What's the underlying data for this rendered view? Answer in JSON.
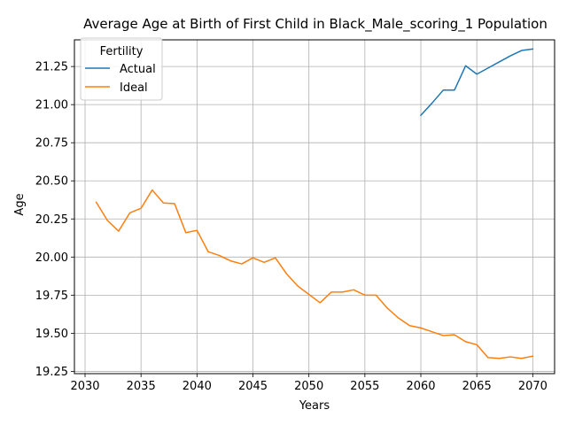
{
  "chart_data": {
    "type": "line",
    "title": "Average Age at Birth of First Child in Black_Male_scoring_1 Population",
    "xlabel": "Years",
    "ylabel": "Age",
    "xlim": [
      2029.05,
      2071.95
    ],
    "ylim": [
      19.235,
      21.425
    ],
    "x_ticks": [
      2030,
      2035,
      2040,
      2045,
      2050,
      2055,
      2060,
      2065,
      2070
    ],
    "x_tick_labels": [
      "2030",
      "2035",
      "2040",
      "2045",
      "2050",
      "2055",
      "2060",
      "2065",
      "2070"
    ],
    "y_ticks": [
      19.25,
      19.5,
      19.75,
      20.0,
      20.25,
      20.5,
      20.75,
      21.0,
      21.25
    ],
    "y_tick_labels": [
      "19.25",
      "19.50",
      "19.75",
      "20.00",
      "20.25",
      "20.50",
      "20.75",
      "21.00",
      "21.25"
    ],
    "grid": true,
    "legend": {
      "title": "Fertility",
      "placement": "top-left"
    },
    "series": [
      {
        "name": "Actual",
        "color": "#1f77b4",
        "x": [
          2060,
          2061,
          2062,
          2063,
          2064,
          2065,
          2066,
          2067,
          2068,
          2069,
          2070
        ],
        "values": [
          20.93,
          21.01,
          21.095,
          21.095,
          21.255,
          21.2,
          21.24,
          21.28,
          21.32,
          21.355,
          21.365
        ]
      },
      {
        "name": "Ideal",
        "color": "#ff7f0e",
        "x": [
          2031,
          2032,
          2033,
          2034,
          2035,
          2036,
          2037,
          2038,
          2039,
          2040,
          2041,
          2042,
          2043,
          2044,
          2045,
          2046,
          2047,
          2048,
          2049,
          2050,
          2051,
          2052,
          2053,
          2054,
          2055,
          2056,
          2057,
          2058,
          2059,
          2060,
          2061,
          2062,
          2063,
          2064,
          2065,
          2066,
          2067,
          2068,
          2069,
          2070
        ],
        "values": [
          20.36,
          20.24,
          20.17,
          20.29,
          20.32,
          20.44,
          20.355,
          20.35,
          20.16,
          20.175,
          20.035,
          20.01,
          19.975,
          19.955,
          19.995,
          19.965,
          19.995,
          19.89,
          19.81,
          19.755,
          19.7,
          19.77,
          19.77,
          19.785,
          19.75,
          19.75,
          19.665,
          19.6,
          19.55,
          19.535,
          19.51,
          19.485,
          19.49,
          19.445,
          19.425,
          19.34,
          19.335,
          19.345,
          19.335,
          19.35
        ]
      }
    ]
  }
}
